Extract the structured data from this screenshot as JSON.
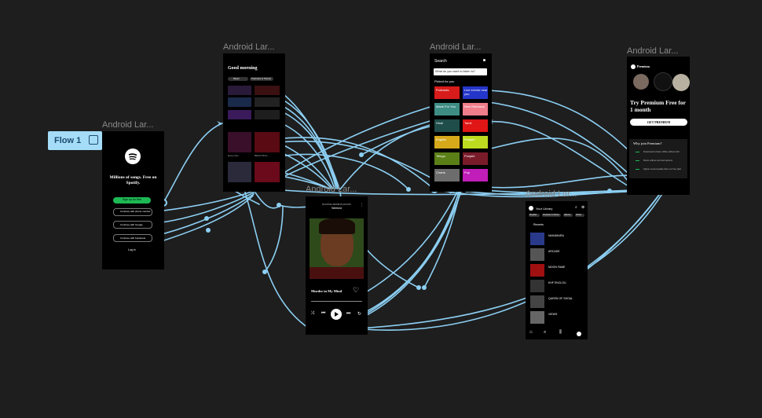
{
  "canvas": {
    "background": "#1e1e1e",
    "wire_color": "#8ccff3"
  },
  "flow": {
    "label": "Flow 1"
  },
  "frames": {
    "label_login": "Android Lar...",
    "label_home": "Android Lar...",
    "label_search": "Android Lar...",
    "label_premium": "Android Lar...",
    "label_player": "Android Lar...",
    "label_library": "Android Lar..."
  },
  "login": {
    "tagline": "Millions of songs. Free on Spotify.",
    "signup": "Sign up for free",
    "phone": "Continue with phone number",
    "google": "Continue with Google",
    "facebook": "Continue with Facebook",
    "login": "Log in"
  },
  "home": {
    "greeting": "Good morning",
    "chips": [
      "Music",
      "Podcasts & Shows"
    ],
    "caption_a": "Every kan...",
    "caption_b": "BEAUTIFUL..."
  },
  "search": {
    "title": "Search",
    "placeholder": "What do you want to listen to?",
    "picked": "Picked for you",
    "tiles": [
      {
        "label": "Podcasts",
        "color": "#d81b1b"
      },
      {
        "label": "Live events near you",
        "color": "#2436c9"
      },
      {
        "label": "Made For You",
        "color": "#3e8d85"
      },
      {
        "label": "New Releases",
        "color": "#f07d8a"
      },
      {
        "label": "Hindi",
        "color": "#1f4d4a"
      },
      {
        "label": "Tamil",
        "color": "#e01515"
      },
      {
        "label": "English",
        "color": "#d6a91b"
      },
      {
        "label": "Punjabi",
        "color": "#bddc1f"
      },
      {
        "label": "Telugu",
        "color": "#5a7f17"
      },
      {
        "label": "Punjabi",
        "color": "#7a1b2a"
      },
      {
        "label": "Charts",
        "color": "#6d6d6d"
      },
      {
        "label": "Pop",
        "color": "#c11db8"
      }
    ]
  },
  "player": {
    "top": "PLAYING FROM PLAYLIST",
    "sub": "Weeknd",
    "song": "Murder in My Mind"
  },
  "library": {
    "title": "Your Library",
    "chips": [
      "Playlists",
      "Podcasts & Shows",
      "Albums",
      "Artists"
    ],
    "recents": "Recents",
    "items": [
      "NAKAMURA",
      "ARCADE",
      "MOON FAME",
      "KHF ENCLOU",
      "QUEEN OF SHOAL",
      "VIEWS"
    ]
  },
  "premium": {
    "brand": "Premium",
    "offer": "Try Premium Free for 1 month",
    "button": "GET PREMIUM",
    "why": "Why join Premium?",
    "benefits": [
      "Download to listen offline without wifi",
      "Music without ad interruptions",
      "Higher sound quality than our free plan"
    ]
  }
}
